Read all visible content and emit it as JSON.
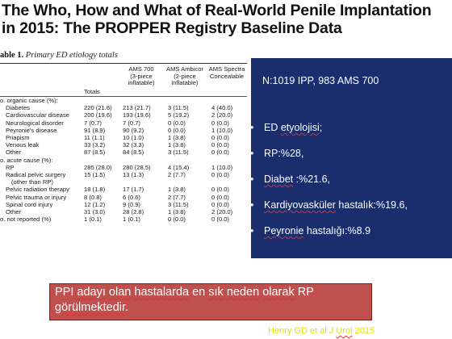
{
  "title": {
    "line1": "The Who, How and What of Real-World Penile Implantation",
    "line2": "in 2015: The PROPPER Registry Baseline Data"
  },
  "table": {
    "caption_prefix": "able 1.",
    "caption_text": " Primary ED etiology totals",
    "headers": {
      "totals": "Totals",
      "ams700": [
        "AMS 700",
        "(3-piece",
        "inflatable)"
      ],
      "ambicor": [
        "AMS Ambicor",
        "(2-piece",
        "inflatable)"
      ],
      "spectra": [
        "AMS Spectra",
        "Concealable"
      ]
    },
    "rows": [
      {
        "label": "o. organic cause (%):",
        "indent": false,
        "totals": "",
        "ams700": "",
        "ambicor": "",
        "spectra": ""
      },
      {
        "label": "Diabetes",
        "indent": true,
        "totals": "220 (21.6)",
        "ams700": "213 (21.7)",
        "ambicor": "3 (11.5)",
        "spectra": "4 (40.0)"
      },
      {
        "label": "Cardiovascular disease",
        "indent": true,
        "totals": "200 (19.6)",
        "ams700": "193 (19.6)",
        "ambicor": "5 (19.2)",
        "spectra": "2 (20.0)"
      },
      {
        "label": "Neurological disorder",
        "indent": true,
        "totals": "7 (0.7)",
        "ams700": "7 (0.7)",
        "ambicor": "0 (0.0)",
        "spectra": "0 (0.0)"
      },
      {
        "label": "Peyronie's disease",
        "indent": true,
        "totals": "91 (8.9)",
        "ams700": "90 (9.2)",
        "ambicor": "0 (0.0)",
        "spectra": "1 (10.0)"
      },
      {
        "label": "Priapism",
        "indent": true,
        "totals": "11 (1.1)",
        "ams700": "10 (1.0)",
        "ambicor": "1 (3.8)",
        "spectra": "0 (0.0)"
      },
      {
        "label": "Venous leak",
        "indent": true,
        "totals": "33 (3.2)",
        "ams700": "32 (3.3)",
        "ambicor": "1 (3.8)",
        "spectra": "0 (0.0)"
      },
      {
        "label": "Other",
        "indent": true,
        "totals": "87 (8.5)",
        "ams700": "84 (8.5)",
        "ambicor": "3 (11.5)",
        "spectra": "0 (0.0)"
      },
      {
        "label": "o. acute cause (%):",
        "indent": false,
        "totals": "",
        "ams700": "",
        "ambicor": "",
        "spectra": ""
      },
      {
        "label": "RP",
        "indent": true,
        "totals": "285 (28.0)",
        "ams700": "280 (28.5)",
        "ambicor": "4 (15.4)",
        "spectra": "1 (10.0)"
      },
      {
        "label": "Radical pelvic surgery",
        "indent": true,
        "totals": "15 (1.5)",
        "ams700": "13 (1.3)",
        "ambicor": "2 (7.7)",
        "spectra": "0 (0.0)"
      },
      {
        "label": "(other than RP)",
        "indent": true,
        "extra_indent": true,
        "totals": "",
        "ams700": "",
        "ambicor": "",
        "spectra": ""
      },
      {
        "label": "Pelvic radiation therapy",
        "indent": true,
        "totals": "18 (1.8)",
        "ams700": "17 (1.7)",
        "ambicor": "1 (3.8)",
        "spectra": "0 (0.0)"
      },
      {
        "label": "Pelvic trauma or injury",
        "indent": true,
        "totals": "8 (0.8)",
        "ams700": "6 (0.6)",
        "ambicor": "2 (7.7)",
        "spectra": "0 (0.0)"
      },
      {
        "label": "Spinal cord injury",
        "indent": true,
        "totals": "12 (1.2)",
        "ams700": "9 (0.9)",
        "ambicor": "3 (11.5)",
        "spectra": "0 (0.0)"
      },
      {
        "label": "Other",
        "indent": true,
        "totals": "31 (3.0)",
        "ams700": "28 (2.8)",
        "ambicor": "1 (3.8)",
        "spectra": "2 (20.0)"
      },
      {
        "label": "o. not reported (%)",
        "indent": false,
        "totals": "1 (0.1)",
        "ams700": "1 (0.1)",
        "ambicor": "0 (0.0)",
        "spectra": "0 (0.0)"
      }
    ]
  },
  "panel": {
    "heading": "N:1019 IPP, 983 AMS 700",
    "bullets": [
      {
        "prefix": "ED ",
        "underlined": "etyolojisi",
        "suffix": ";"
      },
      {
        "prefix": "RP:%28,",
        "underlined": "",
        "suffix": ""
      },
      {
        "prefix": "",
        "underlined": "Diabet",
        "suffix": " :%21.6,"
      },
      {
        "prefix": "",
        "underlined": "Kardiyovasküler",
        "suffix": " hastalık:%19.6,"
      },
      {
        "prefix": "",
        "underlined": "Peyronie",
        "suffix": " hastalığı:%8.9"
      }
    ]
  },
  "callout": {
    "parts": [
      {
        "text": "PPI ",
        "u": false
      },
      {
        "text": "adayı",
        "u": true
      },
      {
        "text": " ",
        "u": false
      },
      {
        "text": "olan",
        "u": true
      },
      {
        "text": " ",
        "u": false
      },
      {
        "text": "hastalarda",
        "u": true
      },
      {
        "text": " en ",
        "u": false
      },
      {
        "text": "sık",
        "u": true
      },
      {
        "text": " ",
        "u": false
      },
      {
        "text": "neden",
        "u": true
      },
      {
        "text": " ",
        "u": false
      },
      {
        "text": "olarak",
        "u": true
      },
      {
        "text": " RP ",
        "u": false
      },
      {
        "text": "görülmektedir",
        "u": true
      },
      {
        "text": ".",
        "u": false
      }
    ]
  },
  "citation": {
    "prefix": "Henry GD et al  J ",
    "underlined": "Urol",
    "suffix": " 2015"
  },
  "colors": {
    "panel_bg": "#1a2e6e",
    "callout_bg": "#c0504d",
    "citation": "#e8e000"
  }
}
